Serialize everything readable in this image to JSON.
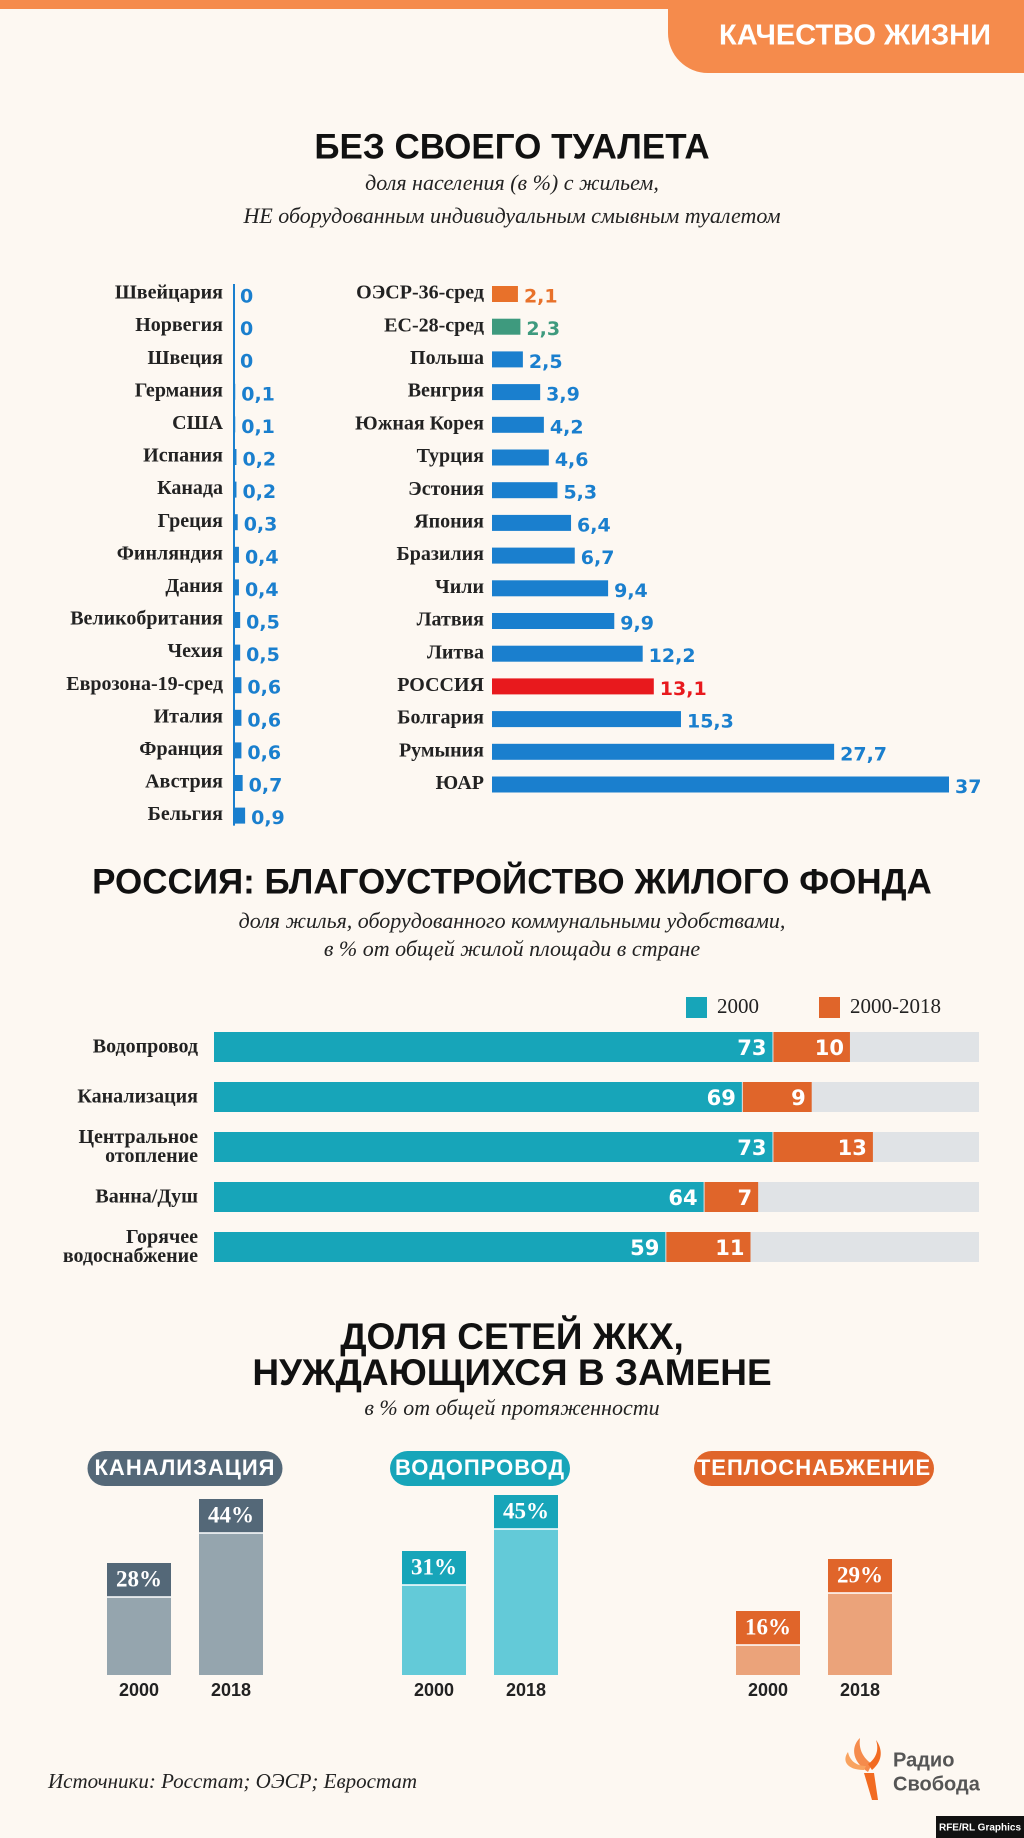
{
  "header": {
    "tag": "КАЧЕСТВО ЖИЗНИ"
  },
  "chart_data": [
    {
      "type": "hbar",
      "title": "БЕЗ СВОЕГО ТУАЛЕТА",
      "subtitle": [
        "доля населения (в %) с жильем,",
        "НЕ оборудованным индивидуальным смывным туалетом"
      ],
      "color": "#1a7fce",
      "xlim": [
        0,
        37
      ],
      "columns": [
        {
          "categories": [
            "Швейцария",
            "Норвегия",
            "Швеция",
            "Германия",
            "США",
            "Испания",
            "Канада",
            "Греция",
            "Финляндия",
            "Дания",
            "Великобритания",
            "Чехия",
            "Еврозона-19-сред",
            "Италия",
            "Франция",
            "Австрия",
            "Бельгия"
          ],
          "values": [
            0,
            0,
            0,
            0.1,
            0.1,
            0.2,
            0.2,
            0.3,
            0.4,
            0.4,
            0.5,
            0.5,
            0.6,
            0.6,
            0.6,
            0.7,
            0.9
          ],
          "value_labels": [
            "0",
            "0",
            "0",
            "0,1",
            "0,1",
            "0,2",
            "0,2",
            "0,3",
            "0,4",
            "0,4",
            "0,5",
            "0,5",
            "0,6",
            "0,6",
            "0,6",
            "0,7",
            "0,9"
          ]
        },
        {
          "categories": [
            "ОЭСР-36-сред",
            "ЕС-28-сред",
            "Польша",
            "Венгрия",
            "Южная Корея",
            "Турция",
            "Эстония",
            "Япония",
            "Бразилия",
            "Чили",
            "Латвия",
            "Литва",
            "РОССИЯ",
            "Болгария",
            "Румыния",
            "ЮАР"
          ],
          "values": [
            2.1,
            2.3,
            2.5,
            3.9,
            4.2,
            4.6,
            5.3,
            6.4,
            6.7,
            9.4,
            9.9,
            12.2,
            13.1,
            15.3,
            27.7,
            37
          ],
          "value_labels": [
            "2,1",
            "2,3",
            "2,5",
            "3,9",
            "4,2",
            "4,6",
            "5,3",
            "6,4",
            "6,7",
            "9,4",
            "9,9",
            "12,2",
            "13,1",
            "15,3",
            "27,7",
            "37"
          ],
          "colors": [
            "#e8712a",
            "#3e9a7e",
            "#1a7fce",
            "#1a7fce",
            "#1a7fce",
            "#1a7fce",
            "#1a7fce",
            "#1a7fce",
            "#1a7fce",
            "#1a7fce",
            "#1a7fce",
            "#1a7fce",
            "#e8191d",
            "#1a7fce",
            "#1a7fce",
            "#1a7fce"
          ]
        }
      ]
    },
    {
      "type": "stacked-hbar",
      "title": "РОССИЯ: БЛАГОУСТРОЙСТВО ЖИЛОГО ФОНДА",
      "subtitle": [
        "доля жилья, оборудованного коммунальными удобствами,",
        "в % от общей жилой площади в стране"
      ],
      "categories": [
        "Водопровод",
        "Канализация",
        "Центральное отопление",
        "Ванна/Душ",
        "Горячее водоснабжение"
      ],
      "xlim": [
        0,
        100
      ],
      "series": [
        {
          "name": "2000",
          "color": "#17a5b9",
          "values": [
            73,
            69,
            73,
            64,
            59
          ]
        },
        {
          "name": "2000-2018",
          "color": "#e0652a",
          "values": [
            10,
            9,
            13,
            7,
            11
          ]
        }
      ]
    },
    {
      "type": "bar-panels",
      "title": [
        "ДОЛЯ СЕТЕЙ ЖКХ,",
        "НУЖДАЮЩИХСЯ В ЗАМЕНЕ"
      ],
      "subtitle": "в % от общей протяженности",
      "panels": [
        {
          "title": "КАНАЛИЗАЦИЯ",
          "color": "#546878",
          "base_color": "#95a5ae",
          "categories": [
            "2000",
            "2018"
          ],
          "values": [
            28,
            44
          ],
          "value_labels": [
            "28%",
            "44%"
          ]
        },
        {
          "title": "ВОДОПРОВОД",
          "color": "#17a5b9",
          "base_color": "#63cad8",
          "categories": [
            "2000",
            "2018"
          ],
          "values": [
            31,
            45
          ],
          "value_labels": [
            "31%",
            "45%"
          ]
        },
        {
          "title": "ТЕПЛОСНАБЖЕНИЕ",
          "color": "#e0652a",
          "base_color": "#eba37a",
          "categories": [
            "2000",
            "2018"
          ],
          "values": [
            16,
            29
          ],
          "value_labels": [
            "16%",
            "29%"
          ]
        }
      ]
    }
  ],
  "footer": {
    "sources": "Источники: Росстат; ОЭСР; Евростат",
    "logo": [
      "Радио",
      "Свобода"
    ],
    "credit": "RFE/RL Graphics"
  }
}
